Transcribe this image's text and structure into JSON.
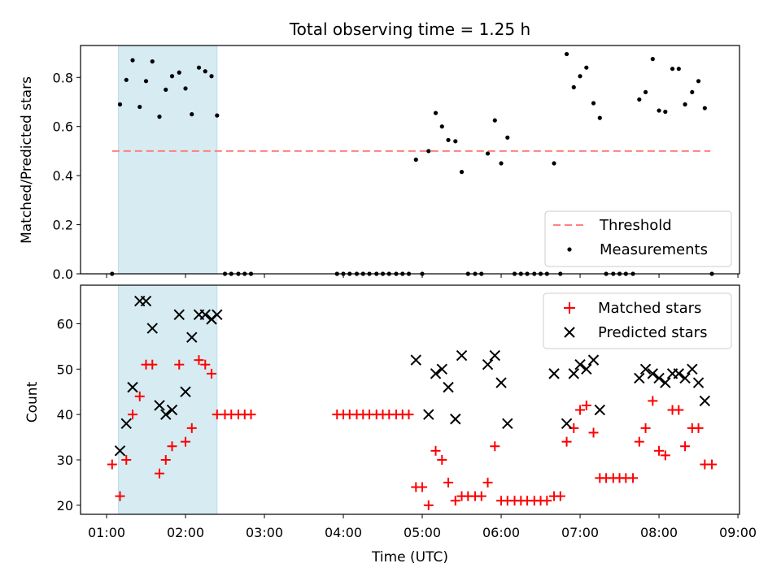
{
  "title": "Total observing time = 1.25 h",
  "colors": {
    "threshold": "#ff7f7f",
    "highlight": "#add8e6",
    "matched": "#ff0000",
    "predicted": "#000000",
    "measurement": "#000000"
  },
  "chart_data": [
    {
      "type": "scatter",
      "ylabel": "Matched/Predicted stars",
      "ylim": [
        0,
        0.93
      ],
      "yticks": [
        "0.0",
        "0.2",
        "0.4",
        "0.6",
        "0.8"
      ],
      "xlim_hours": [
        0.67,
        9.02
      ],
      "highlight_span_hours": [
        1.15,
        2.4
      ],
      "legend": {
        "placement": "lower-right",
        "entries": [
          "Threshold",
          "Measurements"
        ]
      },
      "threshold": {
        "name": "Threshold",
        "value": 0.5,
        "x_hours": [
          1.07,
          8.65
        ]
      },
      "series": [
        {
          "name": "Measurements",
          "marker": "dot",
          "x_hours": [
            1.07,
            1.17,
            1.25,
            1.33,
            1.42,
            1.5,
            1.58,
            1.67,
            1.75,
            1.83,
            1.92,
            2.0,
            2.08,
            2.17,
            2.25,
            2.33,
            2.4,
            2.5,
            2.58,
            2.67,
            2.75,
            2.83,
            3.92,
            4.0,
            4.08,
            4.17,
            4.25,
            4.33,
            4.42,
            4.5,
            4.58,
            4.67,
            4.75,
            4.83,
            4.92,
            5.0,
            5.08,
            5.17,
            5.25,
            5.33,
            5.42,
            5.5,
            5.58,
            5.67,
            5.75,
            5.83,
            5.92,
            6.0,
            6.08,
            6.17,
            6.25,
            6.33,
            6.42,
            6.5,
            6.58,
            6.67,
            6.75,
            6.83,
            6.92,
            7.0,
            7.08,
            7.17,
            7.25,
            7.33,
            7.42,
            7.5,
            7.58,
            7.67,
            7.75,
            7.83,
            7.92,
            8.0,
            8.08,
            8.17,
            8.25,
            8.33,
            8.42,
            8.5,
            8.58,
            8.67
          ],
          "y": [
            0,
            0.69,
            0.79,
            0.87,
            0.68,
            0.785,
            0.865,
            0.64,
            0.75,
            0.805,
            0.82,
            0.755,
            0.65,
            0.84,
            0.825,
            0.805,
            0.645,
            0,
            0,
            0,
            0,
            0,
            0,
            0,
            0,
            0,
            0,
            0,
            0,
            0,
            0,
            0,
            0,
            0,
            0.465,
            0,
            0.5,
            0.655,
            0.6,
            0.545,
            0.54,
            0.415,
            0,
            0,
            0,
            0.49,
            0.625,
            0.45,
            0.555,
            0,
            0,
            0,
            0,
            0,
            0,
            0.45,
            0,
            0.895,
            0.76,
            0.805,
            0.84,
            0.695,
            0.635,
            0,
            0,
            0,
            0,
            0,
            0.71,
            0.74,
            0.875,
            0.665,
            0.66,
            0.835,
            0.835,
            0.69,
            0.74,
            0.785,
            0.675,
            0
          ]
        }
      ]
    },
    {
      "type": "scatter",
      "xlabel": "Time (UTC)",
      "ylabel": "Count",
      "ylim": [
        18,
        68.5
      ],
      "yticks": [
        "20",
        "30",
        "40",
        "50",
        "60"
      ],
      "xlim_hours": [
        0.67,
        9.02
      ],
      "xticks": [
        "01:00",
        "02:00",
        "03:00",
        "04:00",
        "05:00",
        "06:00",
        "07:00",
        "08:00",
        "09:00"
      ],
      "highlight_span_hours": [
        1.15,
        2.4
      ],
      "legend": {
        "placement": "upper-right",
        "entries": [
          "Matched stars",
          "Predicted stars"
        ]
      },
      "series": [
        {
          "name": "Matched stars",
          "marker": "plus",
          "x_hours": [
            1.07,
            1.17,
            1.25,
            1.33,
            1.42,
            1.5,
            1.58,
            1.67,
            1.75,
            1.83,
            1.92,
            2.0,
            2.08,
            2.17,
            2.25,
            2.33,
            2.4,
            2.5,
            2.58,
            2.67,
            2.75,
            2.83,
            3.92,
            4.0,
            4.08,
            4.17,
            4.25,
            4.33,
            4.42,
            4.5,
            4.58,
            4.67,
            4.75,
            4.83,
            4.92,
            5.0,
            5.08,
            5.17,
            5.25,
            5.33,
            5.42,
            5.5,
            5.58,
            5.67,
            5.75,
            5.83,
            5.92,
            6.0,
            6.08,
            6.17,
            6.25,
            6.33,
            6.42,
            6.5,
            6.58,
            6.67,
            6.75,
            6.83,
            6.92,
            7.0,
            7.08,
            7.17,
            7.25,
            7.33,
            7.42,
            7.5,
            7.58,
            7.67,
            7.75,
            7.83,
            7.92,
            8.0,
            8.08,
            8.17,
            8.25,
            8.33,
            8.42,
            8.5,
            8.58,
            8.67
          ],
          "y": [
            29,
            22,
            30,
            40,
            44,
            51,
            51,
            27,
            30,
            33,
            51,
            34,
            37,
            52,
            51,
            49,
            40,
            40,
            40,
            40,
            40,
            40,
            40,
            40,
            40,
            40,
            40,
            40,
            40,
            40,
            40,
            40,
            40,
            40,
            24,
            24,
            20,
            32,
            30,
            25,
            21,
            22,
            22,
            22,
            22,
            25,
            33,
            21,
            21,
            21,
            21,
            21,
            21,
            21,
            21,
            22,
            22,
            34,
            37,
            41,
            42,
            36,
            26,
            26,
            26,
            26,
            26,
            26,
            34,
            37,
            43,
            32,
            31,
            41,
            41,
            33,
            37,
            37,
            29,
            29
          ]
        },
        {
          "name": "Predicted stars",
          "marker": "x",
          "x_hours": [
            1.17,
            1.25,
            1.33,
            1.42,
            1.5,
            1.58,
            1.67,
            1.75,
            1.83,
            1.92,
            2.0,
            2.08,
            2.17,
            2.25,
            2.33,
            2.4,
            4.92,
            5.08,
            5.17,
            5.25,
            5.33,
            5.42,
            5.5,
            5.83,
            5.92,
            6.0,
            6.08,
            6.67,
            6.83,
            6.92,
            7.0,
            7.08,
            7.17,
            7.25,
            7.75,
            7.83,
            7.92,
            8.0,
            8.08,
            8.17,
            8.25,
            8.33,
            8.42,
            8.5,
            8.58
          ],
          "y": [
            32,
            38,
            46,
            65,
            65,
            59,
            42,
            40,
            41,
            62,
            45,
            57,
            62,
            62,
            61,
            62,
            52,
            40,
            49,
            50,
            46,
            39,
            53,
            51,
            53,
            47,
            38,
            49,
            38,
            49,
            51,
            50,
            52,
            41,
            48,
            50,
            49,
            48,
            47,
            49,
            49,
            48,
            50,
            47,
            43
          ]
        }
      ]
    }
  ]
}
